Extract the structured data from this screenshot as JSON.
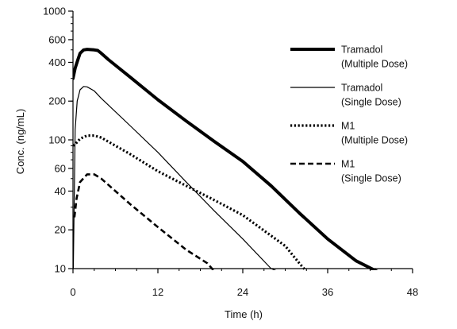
{
  "chart_data": {
    "type": "line",
    "title": "",
    "xlabel": "Time (h)",
    "ylabel": "Conc. (ng/mL)",
    "xlim": [
      0,
      48
    ],
    "ylim": [
      10,
      1000
    ],
    "yscale": "log",
    "grid": false,
    "legend_position": "right",
    "xticks": [
      0,
      12,
      24,
      36,
      48
    ],
    "xtick_labels": [
      "0",
      "12",
      "24",
      "36",
      "48"
    ],
    "yticks_major": [
      10,
      20,
      40,
      60,
      100,
      200,
      400,
      600,
      1000
    ],
    "ytick_labels": [
      "10",
      "20",
      "40",
      "60",
      "100",
      "200",
      "400",
      "600",
      "1000"
    ],
    "series": [
      {
        "name": "Tramadol (Multiple Dose)",
        "legend_lines": [
          "Tramadol",
          "(Multiple Dose)"
        ],
        "style": "thick-solid",
        "color": "#000000",
        "points": [
          [
            0,
            300
          ],
          [
            0.3,
            360
          ],
          [
            0.7,
            420
          ],
          [
            1,
            470
          ],
          [
            1.5,
            500
          ],
          [
            2,
            505
          ],
          [
            3,
            500
          ],
          [
            3.5,
            495
          ],
          [
            4,
            470
          ],
          [
            5,
            420
          ],
          [
            8,
            310
          ],
          [
            12,
            205
          ],
          [
            16,
            140
          ],
          [
            20,
            97
          ],
          [
            24,
            68
          ],
          [
            28,
            44
          ],
          [
            32,
            27
          ],
          [
            36,
            17
          ],
          [
            40,
            11.5
          ],
          [
            43,
            9.5
          ]
        ]
      },
      {
        "name": "Tramadol (Single Dose)",
        "legend_lines": [
          "Tramadol",
          "(Single Dose)"
        ],
        "style": "thin-solid",
        "color": "#000000",
        "points": [
          [
            0.05,
            10
          ],
          [
            0.3,
            120
          ],
          [
            0.6,
            200
          ],
          [
            1,
            245
          ],
          [
            1.5,
            260
          ],
          [
            2,
            258
          ],
          [
            3,
            240
          ],
          [
            4,
            210
          ],
          [
            8,
            130
          ],
          [
            12,
            80
          ],
          [
            16,
            47
          ],
          [
            20,
            28
          ],
          [
            24,
            17
          ],
          [
            28,
            10
          ],
          [
            29,
            9.5
          ]
        ]
      },
      {
        "name": "M1 (Multiple Dose)",
        "legend_lines": [
          "M1",
          "(Multiple Dose)"
        ],
        "style": "dotted",
        "color": "#000000",
        "points": [
          [
            0,
            90
          ],
          [
            0.5,
            95
          ],
          [
            1,
            102
          ],
          [
            2,
            108
          ],
          [
            3,
            108
          ],
          [
            4,
            104
          ],
          [
            6,
            90
          ],
          [
            8,
            78
          ],
          [
            12,
            57
          ],
          [
            16,
            44
          ],
          [
            20,
            34
          ],
          [
            24,
            26
          ],
          [
            28,
            18
          ],
          [
            30,
            15
          ],
          [
            32,
            11
          ],
          [
            33,
            9.5
          ]
        ]
      },
      {
        "name": "M1 (Single Dose)",
        "legend_lines": [
          "M1",
          "(Single Dose)"
        ],
        "style": "dashed",
        "color": "#000000",
        "points": [
          [
            0.2,
            25
          ],
          [
            0.5,
            35
          ],
          [
            1,
            47
          ],
          [
            2,
            54
          ],
          [
            3,
            54
          ],
          [
            4,
            50
          ],
          [
            6,
            40
          ],
          [
            8,
            32
          ],
          [
            12,
            21
          ],
          [
            16,
            14
          ],
          [
            19,
            11
          ],
          [
            20,
            9.5
          ]
        ]
      }
    ]
  }
}
